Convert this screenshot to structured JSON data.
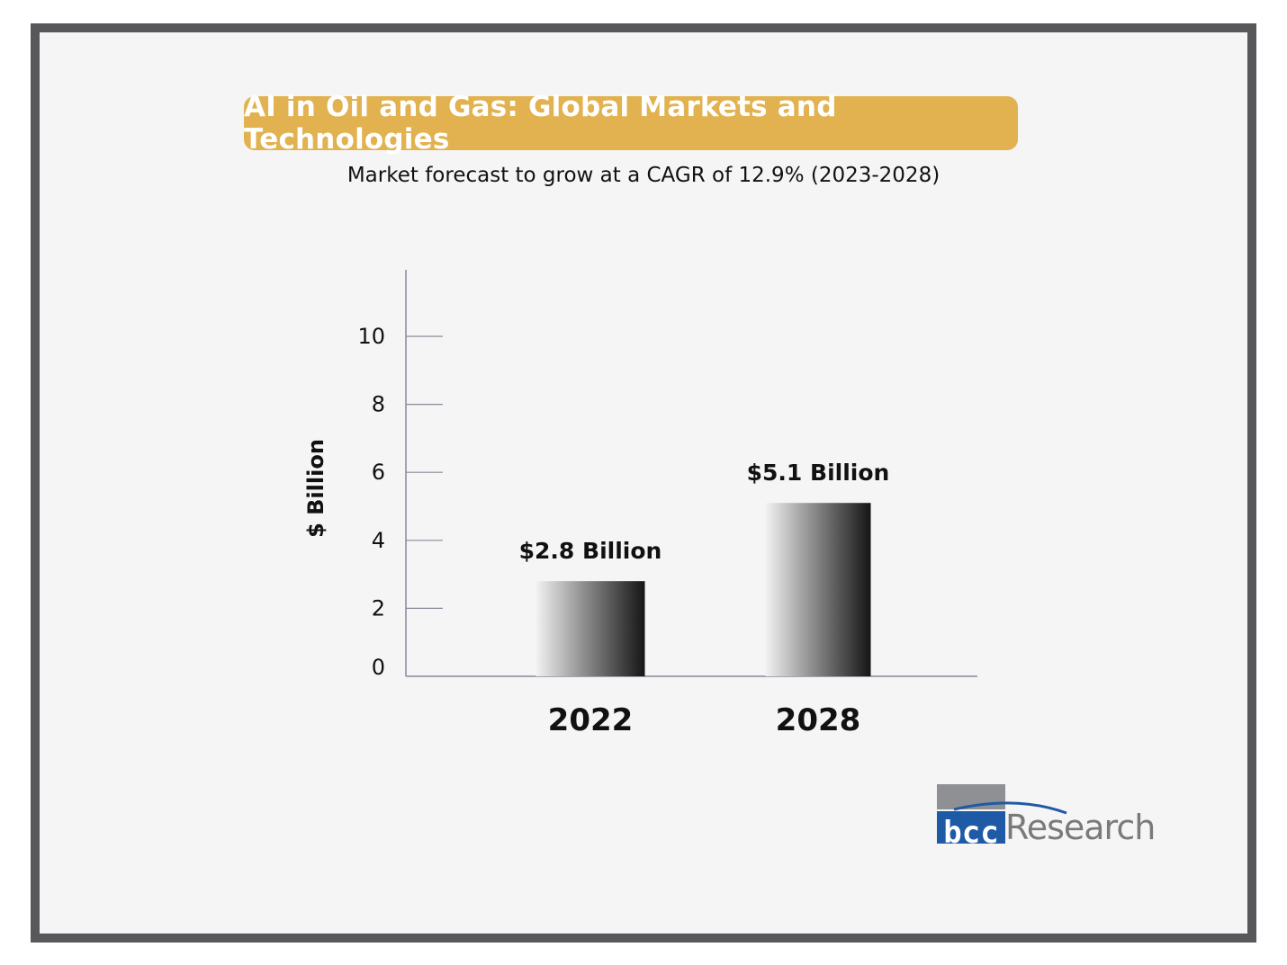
{
  "colors": {
    "frame": "#58585a",
    "banner": "#e1b24f",
    "background": "#f5f5f5",
    "axis": "#8a8a99",
    "logo_blue": "#1f5aa6",
    "logo_gray": "#8e9093"
  },
  "logo": {
    "mark": "bcc",
    "word": "Research"
  },
  "chart_data": {
    "type": "bar",
    "title": "AI in Oil and Gas: Global Markets and Technologies",
    "subtitle": "Market forecast to grow at a CAGR of 12.9% (2023-2028)",
    "ylabel": "$ Billion",
    "xlabel": "",
    "ylim": [
      0,
      12
    ],
    "yticks": [
      0,
      2,
      4,
      6,
      8,
      10
    ],
    "categories": [
      "2022",
      "2028"
    ],
    "values": [
      2.8,
      5.1
    ],
    "data_labels": [
      "$2.8 Billion",
      "$5.1 Billion"
    ],
    "grid": false,
    "legend": "none"
  }
}
